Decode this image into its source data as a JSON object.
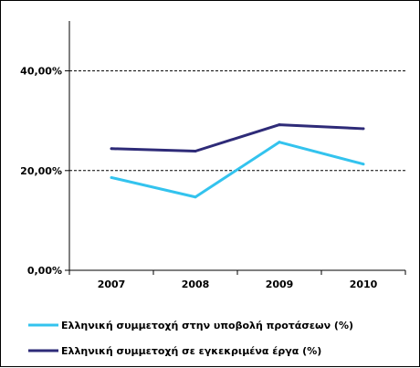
{
  "chart_data": {
    "type": "line",
    "categories": [
      "2007",
      "2008",
      "2009",
      "2010"
    ],
    "ylim": [
      0,
      0.5
    ],
    "yticks": [
      0,
      0.2,
      0.4
    ],
    "ytick_labels": [
      "0,00%",
      "20,00%",
      "40,00%"
    ],
    "grid": "horizontal dashed",
    "legend_position": "bottom",
    "series": [
      {
        "name": "Ελληνική συμμετοχή στην υποβολή προτάσεων (%)",
        "values": [
          0.186,
          0.147,
          0.257,
          0.213
        ],
        "color": "#33c3ee"
      },
      {
        "name": "Ελληνική συμμετοχή σε εγκεκριμένα έργα (%)",
        "values": [
          0.244,
          0.239,
          0.292,
          0.284
        ],
        "color": "#2e2b78"
      }
    ]
  }
}
